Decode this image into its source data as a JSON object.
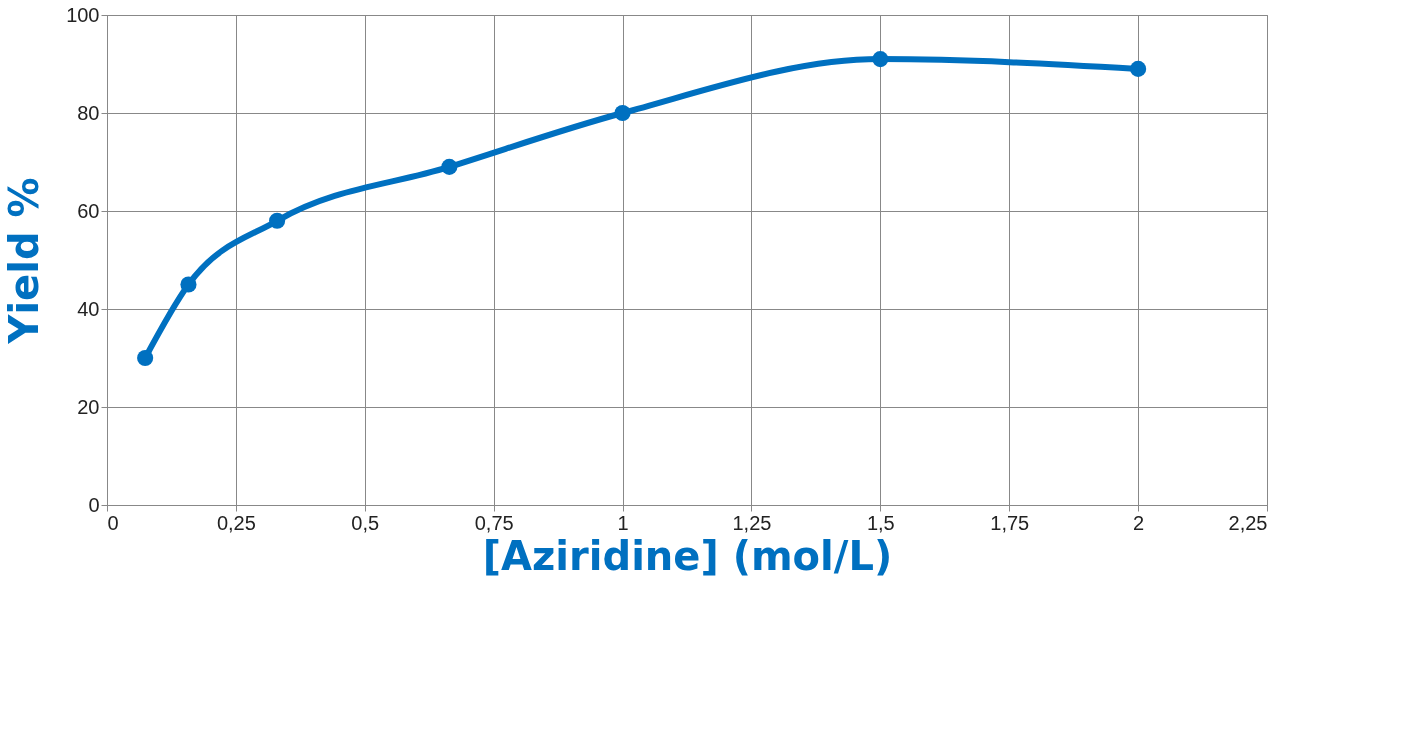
{
  "chart_data": {
    "type": "line",
    "xlabel": "[Aziridine] (mol/L)",
    "ylabel": "Yield %",
    "x": [
      0.074,
      0.158,
      0.33,
      0.664,
      1,
      1.5,
      2
    ],
    "series": [
      {
        "color": "#0070c0",
        "values": [
          30,
          45,
          58,
          69,
          80,
          91,
          89
        ]
      }
    ],
    "xlim": [
      0,
      2.25
    ],
    "xticks": [
      0,
      {
        "value": 0.25,
        "label": "0,25"
      },
      {
        "value": 0.5,
        "label": "0,5"
      },
      {
        "value": 0.75,
        "label": "0,75"
      },
      1,
      {
        "value": 1.25,
        "label": "1,25"
      },
      {
        "value": 1.5,
        "label": "1,5"
      },
      {
        "value": 1.75,
        "label": "1,75"
      },
      2,
      {
        "value": 2.25,
        "label": "2,25"
      }
    ],
    "ylim": [
      0,
      100
    ],
    "yticks": [
      0,
      20,
      40,
      60,
      80,
      100
    ],
    "grid": true,
    "marker": "circle",
    "line_style": "solid"
  }
}
